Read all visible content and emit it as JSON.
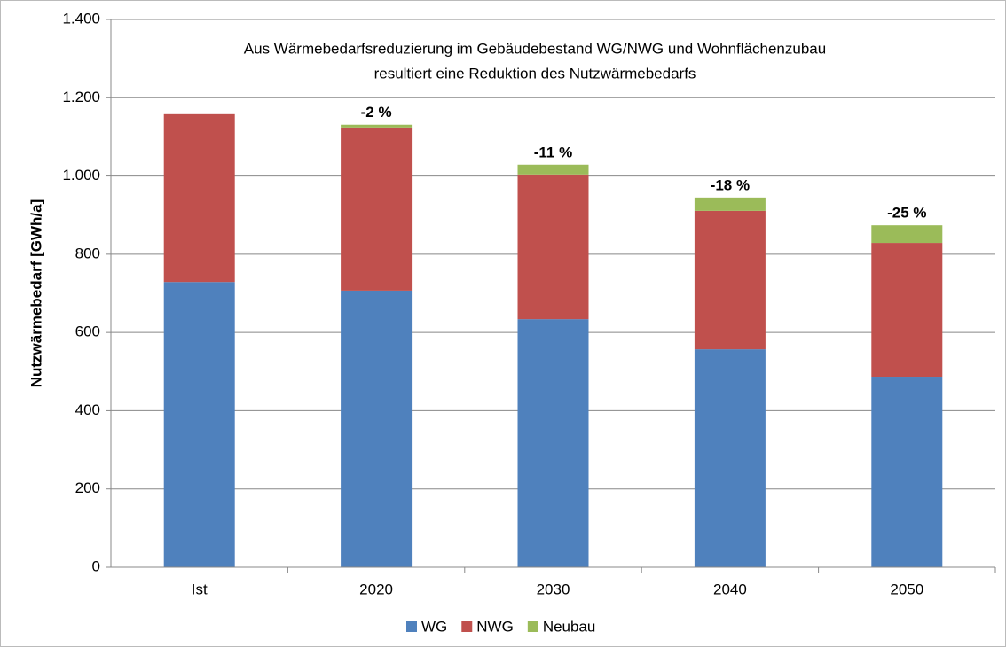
{
  "chart_data": {
    "type": "stacked_bar",
    "title": [
      "Aus Wärmebedarfsreduzierung im Gebäudebestand WG/NWG und Wohnflächenzubau",
      "resultiert eine Reduktion des Nutzwärmebedarfs"
    ],
    "y_label": "Nutzwärmebedarf [GWh/a]",
    "categories": [
      "Ist",
      "2020",
      "2030",
      "2040",
      "2050"
    ],
    "series": [
      {
        "name": "WG",
        "color": "#4f81bd",
        "values": [
          729,
          707,
          634,
          557,
          487
        ]
      },
      {
        "name": "NWG",
        "color": "#c0504d",
        "values": [
          429,
          417,
          370,
          354,
          342
        ]
      },
      {
        "name": "Neubau",
        "color": "#9bbb59",
        "values": [
          0,
          7,
          25,
          34,
          45
        ]
      }
    ],
    "annotations": [
      null,
      "-2 %",
      "-11 %",
      "-18 %",
      "-25 %"
    ],
    "ylim": [
      0,
      1400
    ],
    "yticks": [
      0,
      200,
      400,
      600,
      800,
      {
        "value": 1000,
        "label": "1.000"
      },
      {
        "value": 1200,
        "label": "1.200"
      },
      {
        "value": 1400,
        "label": "1.400"
      }
    ],
    "grid": true,
    "legend": "bottom"
  }
}
